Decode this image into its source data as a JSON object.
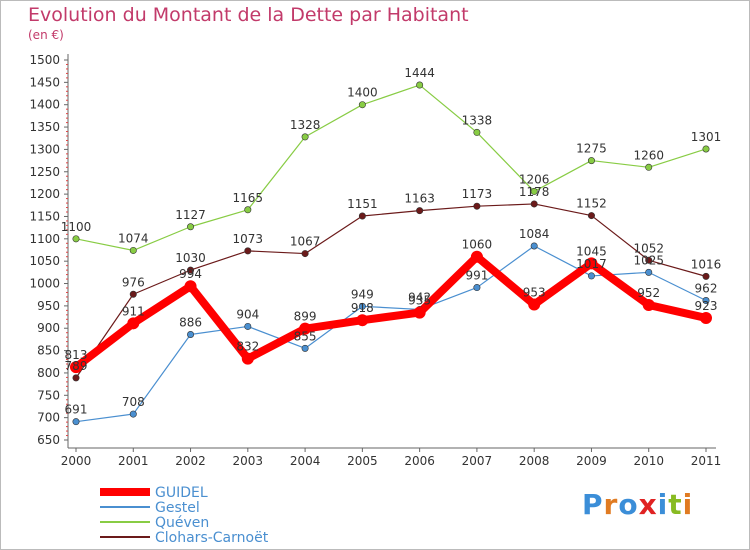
{
  "chart_data": {
    "type": "line",
    "title": "Evolution du Montant de la Dette par Habitant",
    "subtitle": "(en €)",
    "xlabel": "",
    "ylabel": "",
    "x": [
      "2000",
      "2001",
      "2002",
      "2003",
      "2004",
      "2005",
      "2006",
      "2007",
      "2008",
      "2009",
      "2010",
      "2011"
    ],
    "ylim": [
      650,
      1500
    ],
    "yticks": [
      650,
      700,
      750,
      800,
      850,
      900,
      950,
      1000,
      1050,
      1100,
      1150,
      1200,
      1250,
      1300,
      1350,
      1400,
      1450,
      1500
    ],
    "grid": false,
    "legend_position": "bottom-left",
    "series": [
      {
        "name": "GUIDEL",
        "color": "#ff0000",
        "values": [
          813,
          911,
          994,
          832,
          899,
          918,
          935,
          1060,
          953,
          1045,
          952,
          923
        ]
      },
      {
        "name": "Gestel",
        "color": "#4a8fd0",
        "values": [
          691,
          708,
          886,
          904,
          855,
          949,
          942,
          991,
          1084,
          1017,
          1025,
          962
        ]
      },
      {
        "name": "Quéven",
        "color": "#88cc44",
        "values": [
          1100,
          1074,
          1127,
          1165,
          1328,
          1400,
          1444,
          1338,
          1206,
          1275,
          1260,
          1301
        ]
      },
      {
        "name": "Clohars-Carnoët",
        "color": "#6b1a1a",
        "values": [
          789,
          976,
          1030,
          1073,
          1067,
          1151,
          1163,
          1173,
          1178,
          1152,
          1052,
          1016
        ]
      }
    ]
  },
  "logo": {
    "letters": [
      "P",
      "r",
      "o",
      "x",
      "i",
      "t",
      "i"
    ],
    "colors": [
      "#3b8ed8",
      "#e07b22",
      "#3b8ed8",
      "#e02222",
      "#3b8ed8",
      "#88bb22",
      "#e07b22"
    ]
  }
}
